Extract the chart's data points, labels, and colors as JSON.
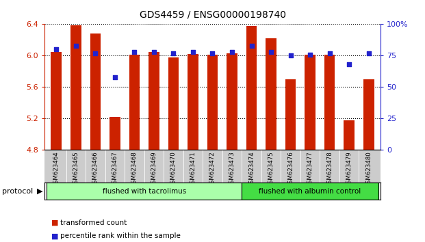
{
  "title": "GDS4459 / ENSG00000198740",
  "categories": [
    "GSM623464",
    "GSM623465",
    "GSM623466",
    "GSM623467",
    "GSM623468",
    "GSM623469",
    "GSM623470",
    "GSM623471",
    "GSM623472",
    "GSM623473",
    "GSM623474",
    "GSM623475",
    "GSM623476",
    "GSM623477",
    "GSM623478",
    "GSM623479",
    "GSM623480"
  ],
  "bar_values": [
    6.05,
    6.39,
    6.28,
    5.22,
    6.01,
    6.05,
    5.98,
    6.02,
    6.01,
    6.03,
    6.38,
    6.22,
    5.7,
    6.01,
    6.01,
    5.18,
    5.7
  ],
  "percentile_values": [
    80,
    83,
    77,
    58,
    78,
    78,
    77,
    78,
    77,
    78,
    83,
    78,
    75,
    76,
    77,
    68,
    77
  ],
  "bar_bottom": 4.8,
  "ylim_left": [
    4.8,
    6.4
  ],
  "ylim_right": [
    0,
    100
  ],
  "yticks_left": [
    4.8,
    5.2,
    5.6,
    6.0,
    6.4
  ],
  "yticks_right": [
    0,
    25,
    50,
    75,
    100
  ],
  "ytick_labels_right": [
    "0",
    "25",
    "50",
    "75",
    "100%"
  ],
  "bar_color": "#cc2200",
  "dot_color": "#2222cc",
  "protocol_groups": [
    {
      "label": "flushed with tacrolimus",
      "start": 0,
      "end": 10,
      "color": "#aaffaa"
    },
    {
      "label": "flushed with albumin control",
      "start": 10,
      "end": 17,
      "color": "#44dd44"
    }
  ],
  "protocol_label": "protocol",
  "legend": [
    {
      "color": "#cc2200",
      "label": "transformed count"
    },
    {
      "color": "#2222cc",
      "label": "percentile rank within the sample"
    }
  ]
}
